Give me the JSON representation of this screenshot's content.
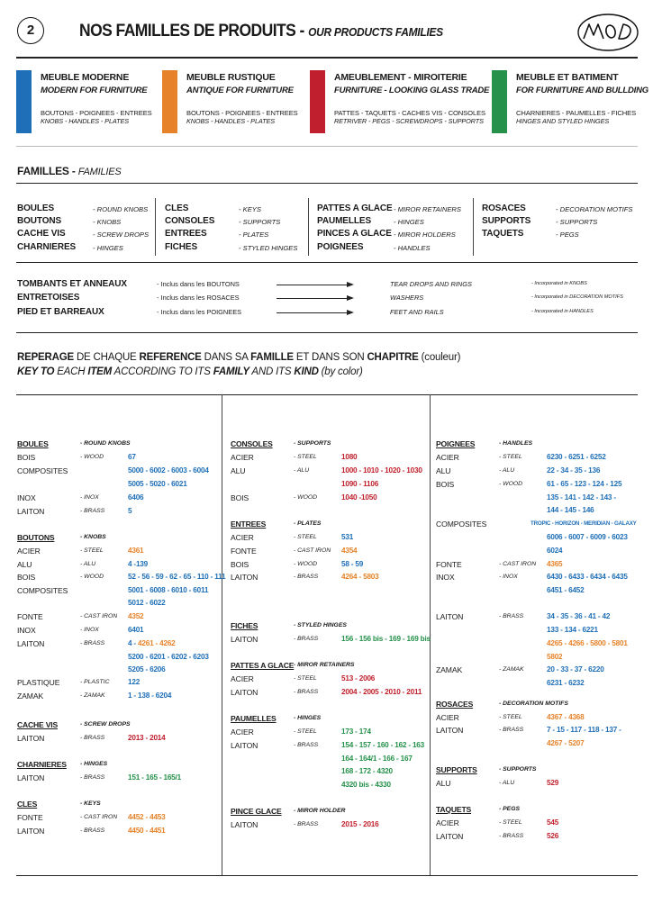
{
  "colors": {
    "blue": "#1e6fb8",
    "orange": "#e6832a",
    "red": "#c0202d",
    "green": "#25914a"
  },
  "header": {
    "page_number": "2",
    "title_fr": "NOS FAMILLES DE PRODUITS - ",
    "title_en": "OUR PRODUCTS FAMILIES",
    "logo": "MOD"
  },
  "families": [
    {
      "name": "MEUBLE MODERNE",
      "sub": "MODERN FOR FURNITURE",
      "fr": "BOUTONS - POIGNEES - ENTREES",
      "en": "KNOBS - HANDLES - PLATES",
      "color": "blue"
    },
    {
      "name": "MEUBLE RUSTIQUE",
      "sub": "ANTIQUE FOR FURNITURE",
      "fr": "BOUTONS - POIGNEES - ENTREES",
      "en": "KNOBS - HANDLES - PLATES",
      "color": "orange"
    },
    {
      "name": "AMEUBLEMENT - MIROITERIE",
      "sub": "FURNITURE - LOOKING GLASS TRADE",
      "fr": "PATTES - TAQUETS - CACHES VIS - CONSOLES",
      "en": "RETRIVER - PEGS - SCREWDROPS - SUPPORTS",
      "color": "red"
    },
    {
      "name": "MEUBLE ET BATIMENT",
      "sub": "FOR FURNITURE AND BULLDING",
      "fr": "CHARNIERES - PAUMELLES - FICHES",
      "en": "HINGES AND STYLED HINGES",
      "color": "green"
    }
  ],
  "familles": {
    "title": "FAMILLES - ",
    "title_en": "FAMILIES",
    "groups": [
      [
        [
          "BOULES",
          "- ROUND KNOBS"
        ],
        [
          "BOUTONS",
          "- KNOBS"
        ],
        [
          "CACHE VIS",
          "- SCREW DROPS"
        ],
        [
          "CHARNIERES",
          "- HINGES"
        ]
      ],
      [
        [
          "CLES",
          "- KEYS"
        ],
        [
          "CONSOLES",
          "- SUPPORTS"
        ],
        [
          "ENTREES",
          "- PLATES"
        ],
        [
          "FICHES",
          "- STYLED HINGES"
        ]
      ],
      [
        [
          "PATTES A GLACE",
          "- MIROR RETAINERS"
        ],
        [
          "PAUMELLES",
          "- HINGES"
        ],
        [
          "PINCES A GLACE",
          "- MIROR HOLDERS"
        ],
        [
          "POIGNEES",
          "- HANDLES"
        ]
      ],
      [
        [
          "ROSACES",
          "- DECORATION MOTIFS"
        ],
        [
          "SUPPORTS",
          "- SUPPORTS"
        ],
        [
          "TAQUETS",
          "- PEGS"
        ]
      ]
    ],
    "included": [
      {
        "name": "TOMBANTS ET ANNEAUX",
        "fr": "- Inclus dans les BOUTONS",
        "en": "TEAR DROPS AND RINGS",
        "note": "- Incorporated in KNOBS"
      },
      {
        "name": "ENTRETOISES",
        "fr": "- Inclus dans les ROSACES",
        "en": "WASHERS",
        "note": "- Incorporated in DECORATION MOTIFS"
      },
      {
        "name": "PIED ET BARREAUX",
        "fr": "- Inclus dans les POIGNEES",
        "en": "FEET AND RAILS",
        "note": "- Incorporated in HANDLES"
      }
    ]
  },
  "key": {
    "fr": [
      "REPERAGE",
      " DE CHAQUE ",
      "REFERENCE",
      " DANS SA ",
      "FAMILLE",
      " ET DANS SON ",
      "CHAPITRE",
      " (couleur)"
    ],
    "en": [
      "KEY TO",
      " EACH ",
      "ITEM",
      " ACCORDING TO ITS ",
      "FAMILY",
      " AND ITS ",
      "KIND",
      " (by color)"
    ]
  },
  "table": {
    "col1": [
      {
        "t": "hd",
        "y": 36,
        "a": "BOULES",
        "b": "- ROUND KNOBS"
      },
      {
        "t": "r",
        "y": 51,
        "a": "BOIS",
        "b": "- WOOD",
        "refs": [
          [
            "67",
            "blue"
          ]
        ]
      },
      {
        "t": "r",
        "y": 66,
        "a": "COMPOSITES",
        "b": "",
        "refs": [
          [
            "5000 - 6002 - 6003 - 6004",
            "blue"
          ]
        ]
      },
      {
        "t": "c",
        "y": 81,
        "refs": [
          [
            "5005 - 5020 - 6021",
            "blue"
          ]
        ]
      },
      {
        "t": "r",
        "y": 96,
        "a": "INOX",
        "b": "- INOX",
        "refs": [
          [
            "6406",
            "blue"
          ]
        ]
      },
      {
        "t": "r",
        "y": 111,
        "a": "LAITON",
        "b": "- BRASS",
        "refs": [
          [
            "5",
            "blue"
          ]
        ]
      },
      {
        "t": "hd",
        "y": 140,
        "a": "BOUTONS",
        "b": "- KNOBS"
      },
      {
        "t": "r",
        "y": 155,
        "a": "ACIER",
        "b": "- STEEL",
        "refs": [
          [
            "4361",
            "orange"
          ]
        ]
      },
      {
        "t": "r",
        "y": 170,
        "a": "ALU",
        "b": "- ALU",
        "refs": [
          [
            "4 -139",
            "blue"
          ]
        ]
      },
      {
        "t": "r",
        "y": 184,
        "a": "BOIS",
        "b": "- WOOD",
        "refs": [
          [
            "52 - 56 - 59 - 62 - 65 - 110 - 111",
            "blue"
          ]
        ]
      },
      {
        "t": "r",
        "y": 199,
        "a": "COMPOSITES",
        "b": "",
        "refs": [
          [
            "5001 - 6008 - 6010 - 6011",
            "blue"
          ]
        ]
      },
      {
        "t": "c",
        "y": 213,
        "refs": [
          [
            "5012 - 6022",
            "blue"
          ]
        ]
      },
      {
        "t": "r",
        "y": 228,
        "a": "FONTE",
        "b": "- CAST IRON",
        "refs": [
          [
            "4352",
            "orange"
          ]
        ]
      },
      {
        "t": "r",
        "y": 243,
        "a": "INOX",
        "b": "- INOX",
        "refs": [
          [
            "6401",
            "blue"
          ]
        ]
      },
      {
        "t": "r",
        "y": 258,
        "a": "LAITON",
        "b": "- BRASS",
        "refs": [
          [
            "4 - ",
            "blue"
          ],
          [
            "4261 - 4262",
            "orange"
          ]
        ]
      },
      {
        "t": "c",
        "y": 273,
        "refs": [
          [
            "5200 - 6201 - 6202 - 6203",
            "blue"
          ]
        ]
      },
      {
        "t": "c",
        "y": 287,
        "refs": [
          [
            "5205 - 6206",
            "blue"
          ]
        ]
      },
      {
        "t": "r",
        "y": 301,
        "a": "PLASTIQUE",
        "b": "- PLASTIC",
        "refs": [
          [
            "122",
            "blue"
          ]
        ]
      },
      {
        "t": "r",
        "y": 316,
        "a": "ZAMAK",
        "b": "- ZAMAK",
        "refs": [
          [
            "1 - 138 - 6204",
            "blue"
          ]
        ]
      },
      {
        "t": "hd",
        "y": 348,
        "a": "CACHE VIS",
        "b": "- SCREW DROPS"
      },
      {
        "t": "r",
        "y": 363,
        "a": "LAITON",
        "b": "- BRASS",
        "refs": [
          [
            "2013 - 2014",
            "red"
          ]
        ]
      },
      {
        "t": "hd",
        "y": 392,
        "a": "CHARNIERES",
        "b": "- HINGES"
      },
      {
        "t": "r",
        "y": 407,
        "a": "LAITON",
        "b": "- BRASS",
        "refs": [
          [
            "151 - 165 - 165/1",
            "green"
          ]
        ]
      },
      {
        "t": "hd",
        "y": 436,
        "a": "CLES",
        "b": "- KEYS"
      },
      {
        "t": "r",
        "y": 451,
        "a": "FONTE",
        "b": "- CAST IRON",
        "refs": [
          [
            "4452 - 4453",
            "orange"
          ]
        ]
      },
      {
        "t": "r",
        "y": 466,
        "a": "LAITON",
        "b": "- BRASS",
        "refs": [
          [
            "4450 - 4451",
            "orange"
          ]
        ]
      }
    ],
    "col2": [
      {
        "t": "hd",
        "y": 36,
        "a": "CONSOLES",
        "b": "- SUPPORTS"
      },
      {
        "t": "r",
        "y": 51,
        "a": "ACIER",
        "b": "- STEEL",
        "refs": [
          [
            "1080",
            "red"
          ]
        ]
      },
      {
        "t": "r",
        "y": 66,
        "a": "ALU",
        "b": "- ALU",
        "refs": [
          [
            "1000 - 1010 - 1020 - 1030",
            "red"
          ]
        ]
      },
      {
        "t": "c",
        "y": 81,
        "refs": [
          [
            "1090 - 1106",
            "red"
          ]
        ]
      },
      {
        "t": "r",
        "y": 96,
        "a": "BOIS",
        "b": "- WOOD",
        "refs": [
          [
            "1040 -1050",
            "red"
          ]
        ]
      },
      {
        "t": "hd",
        "y": 125,
        "a": "ENTREES",
        "b": "- PLATES"
      },
      {
        "t": "r",
        "y": 140,
        "a": "ACIER",
        "b": "- STEEL",
        "refs": [
          [
            "531",
            "blue"
          ]
        ]
      },
      {
        "t": "r",
        "y": 155,
        "a": "FONTE",
        "b": "- CAST IRON",
        "refs": [
          [
            "4354",
            "orange"
          ]
        ]
      },
      {
        "t": "r",
        "y": 170,
        "a": "BOIS",
        "b": "- WOOD",
        "refs": [
          [
            "58 - 59",
            "blue"
          ]
        ]
      },
      {
        "t": "r",
        "y": 184,
        "a": "LAITON",
        "b": "- BRASS",
        "refs": [
          [
            "4264 - 5803",
            "orange"
          ]
        ]
      },
      {
        "t": "hd",
        "y": 238,
        "a": "FICHES",
        "b": "- STYLED HINGES"
      },
      {
        "t": "r",
        "y": 253,
        "a": "LAITON",
        "b": "- BRASS",
        "refs": [
          [
            "156 - 156 bis - 169 - 169 bis",
            "green"
          ]
        ]
      },
      {
        "t": "hd",
        "y": 282,
        "a": "PATTES A GLACE",
        "b": "- MIROR RETAINERS"
      },
      {
        "t": "r",
        "y": 297,
        "a": "ACIER",
        "b": "- STEEL",
        "refs": [
          [
            "513 - 2006",
            "red"
          ]
        ]
      },
      {
        "t": "r",
        "y": 312,
        "a": "LAITON",
        "b": "- BRASS",
        "refs": [
          [
            "2004 - 2005 - 2010 - 2011",
            "red"
          ]
        ]
      },
      {
        "t": "hd",
        "y": 341,
        "a": "PAUMELLES",
        "b": "- HINGES"
      },
      {
        "t": "r",
        "y": 356,
        "a": "ACIER",
        "b": "- STEEL",
        "refs": [
          [
            "173 - 174",
            "green"
          ]
        ]
      },
      {
        "t": "r",
        "y": 371,
        "a": "LAITON",
        "b": "- BRASS",
        "refs": [
          [
            "154 - 157 - 160 - 162 - 163",
            "green"
          ]
        ]
      },
      {
        "t": "c",
        "y": 386,
        "refs": [
          [
            "164 - 164/1 - 166 - 167",
            "green"
          ]
        ]
      },
      {
        "t": "c",
        "y": 400,
        "refs": [
          [
            "168 - 172 - 4320",
            "green"
          ]
        ]
      },
      {
        "t": "c",
        "y": 415,
        "refs": [
          [
            "4320 bis - 4330",
            "green"
          ]
        ]
      },
      {
        "t": "hd",
        "y": 444,
        "a": "PINCE GLACE",
        "b": "- MIROR HOLDER"
      },
      {
        "t": "r",
        "y": 459,
        "a": "LAITON",
        "b": "- BRASS",
        "refs": [
          [
            "2015 - 2016",
            "red"
          ]
        ]
      }
    ],
    "col3": [
      {
        "t": "hd",
        "y": 36,
        "a": "POIGNEES",
        "b": "- HANDLES"
      },
      {
        "t": "r",
        "y": 51,
        "a": "ACIER",
        "b": "- STEEL",
        "refs": [
          [
            "6230 - 6251 - 6252",
            "blue"
          ]
        ]
      },
      {
        "t": "r",
        "y": 66,
        "a": "ALU",
        "b": "- ALU",
        "refs": [
          [
            "22 - 34 - 35 - 136",
            "blue"
          ]
        ]
      },
      {
        "t": "r",
        "y": 81,
        "a": "BOIS",
        "b": "- WOOD",
        "refs": [
          [
            "61 - 65 - 123 - 124 - 125",
            "blue"
          ]
        ]
      },
      {
        "t": "c",
        "y": 96,
        "refs": [
          [
            "135 - 141 - 142 - 143 -",
            "blue"
          ]
        ]
      },
      {
        "t": "c",
        "y": 110,
        "refs": [
          [
            "144 - 145 - 146",
            "blue"
          ]
        ]
      },
      {
        "t": "r",
        "y": 125,
        "a": "COMPOSITES",
        "b": "",
        "refs": [
          [
            "TROPIC - HORIZON - MERIDIAN - GALAXY",
            "blue"
          ]
        ],
        "small": true
      },
      {
        "t": "c",
        "y": 140,
        "refs": [
          [
            "6006 - 6007 - 6009 - 6023",
            "blue"
          ]
        ]
      },
      {
        "t": "c",
        "y": 155,
        "refs": [
          [
            "6024",
            "blue"
          ]
        ]
      },
      {
        "t": "r",
        "y": 170,
        "a": "FONTE",
        "b": "- CAST IRON",
        "refs": [
          [
            "4365",
            "orange"
          ]
        ]
      },
      {
        "t": "r",
        "y": 184,
        "a": "INOX",
        "b": "- INOX",
        "refs": [
          [
            "6430 - 6433 - 6434 - 6435",
            "blue"
          ]
        ]
      },
      {
        "t": "c",
        "y": 199,
        "refs": [
          [
            "6451 - 6452",
            "blue"
          ]
        ]
      },
      {
        "t": "r",
        "y": 228,
        "a": "LAITON",
        "b": "- BRASS",
        "refs": [
          [
            "34 - 35 - 36 - 41 - 42",
            "blue"
          ]
        ]
      },
      {
        "t": "c",
        "y": 243,
        "refs": [
          [
            "133 - 134 - 6221",
            "blue"
          ]
        ]
      },
      {
        "t": "c",
        "y": 258,
        "refs": [
          [
            "4265 - 4266 - 5800 - 5801",
            "orange"
          ]
        ]
      },
      {
        "t": "c",
        "y": 273,
        "refs": [
          [
            "5802",
            "orange"
          ]
        ]
      },
      {
        "t": "r",
        "y": 287,
        "a": "ZAMAK",
        "b": "- ZAMAK",
        "refs": [
          [
            "20 - 33 - 37 - 6220",
            "blue"
          ]
        ]
      },
      {
        "t": "c",
        "y": 302,
        "refs": [
          [
            "6231 - 6232",
            "blue"
          ]
        ]
      },
      {
        "t": "hd",
        "y": 325,
        "a": "ROSACES",
        "b": "- DECORATION MOTIFS"
      },
      {
        "t": "r",
        "y": 340,
        "a": "ACIER",
        "b": "- STEEL",
        "refs": [
          [
            "4367 - 4368",
            "orange"
          ]
        ]
      },
      {
        "t": "r",
        "y": 354,
        "a": "LAITON",
        "b": "- BRASS",
        "refs": [
          [
            "7 - 15 - 117 - 118 - 137 -",
            "blue"
          ]
        ]
      },
      {
        "t": "c",
        "y": 369,
        "refs": [
          [
            "4267 - 5207",
            "orange"
          ]
        ]
      },
      {
        "t": "hd",
        "y": 398,
        "a": "SUPPORTS",
        "b": "- SUPPORTS"
      },
      {
        "t": "r",
        "y": 413,
        "a": "ALU",
        "b": "- ALU",
        "refs": [
          [
            "529",
            "red"
          ]
        ]
      },
      {
        "t": "hd",
        "y": 442,
        "a": "TAQUETS",
        "b": "- PEGS"
      },
      {
        "t": "r",
        "y": 457,
        "a": "ACIER",
        "b": "- STEEL",
        "refs": [
          [
            "545",
            "red"
          ]
        ]
      },
      {
        "t": "r",
        "y": 472,
        "a": "LAITON",
        "b": "- BRASS",
        "refs": [
          [
            "526",
            "red"
          ]
        ]
      }
    ]
  }
}
